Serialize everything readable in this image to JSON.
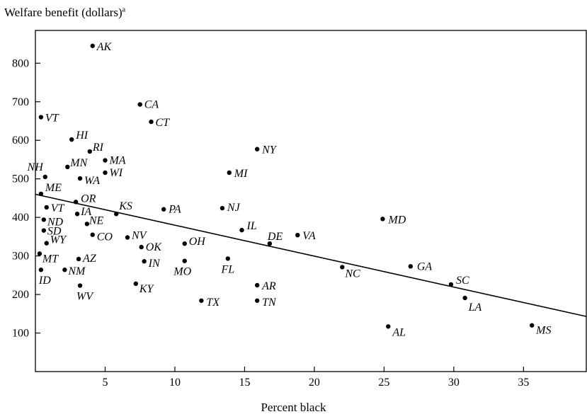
{
  "chart_data": {
    "type": "scatter",
    "ylabel": "Welfare benefit (dollars)",
    "ylabel_superscript": "a",
    "xlabel": "Percent black",
    "xlim": [
      0,
      39.5
    ],
    "ylim": [
      0,
      885
    ],
    "x_ticks": [
      5,
      10,
      15,
      20,
      25,
      30,
      35
    ],
    "y_ticks": [
      100,
      200,
      300,
      400,
      500,
      600,
      700,
      800
    ],
    "grid": false,
    "points": [
      {
        "label": "AK",
        "x": 4.1,
        "y": 845
      },
      {
        "label": "CA",
        "x": 7.5,
        "y": 693
      },
      {
        "label": "VT",
        "x": 0.4,
        "y": 660
      },
      {
        "label": "CT",
        "x": 8.3,
        "y": 648
      },
      {
        "label": "HI",
        "x": 2.6,
        "y": 602
      },
      {
        "label": "NY",
        "x": 15.9,
        "y": 577
      },
      {
        "label": "RI",
        "x": 3.9,
        "y": 571
      },
      {
        "label": "MA",
        "x": 5.0,
        "y": 548
      },
      {
        "label": "MN",
        "x": 2.3,
        "y": 531
      },
      {
        "label": "MI",
        "x": 13.9,
        "y": 516
      },
      {
        "label": "WI",
        "x": 5.0,
        "y": 516
      },
      {
        "label": "NH",
        "x": 0.7,
        "y": 505
      },
      {
        "label": "WA",
        "x": 3.2,
        "y": 501
      },
      {
        "label": "ME",
        "x": 0.4,
        "y": 461
      },
      {
        "label": "OR",
        "x": 2.9,
        "y": 440
      },
      {
        "label": "VT",
        "x": 0.8,
        "y": 426
      },
      {
        "label": "PA",
        "x": 9.2,
        "y": 421
      },
      {
        "label": "NJ",
        "x": 13.4,
        "y": 424
      },
      {
        "label": "KS",
        "x": 5.8,
        "y": 409
      },
      {
        "label": "IA",
        "x": 3.0,
        "y": 409
      },
      {
        "label": "MD",
        "x": 24.9,
        "y": 396
      },
      {
        "label": "ND",
        "x": 0.6,
        "y": 394
      },
      {
        "label": "NE",
        "x": 3.7,
        "y": 383
      },
      {
        "label": "IL",
        "x": 14.8,
        "y": 367
      },
      {
        "label": "SD",
        "x": 0.6,
        "y": 366
      },
      {
        "label": "CO",
        "x": 4.1,
        "y": 355
      },
      {
        "label": "VA",
        "x": 18.8,
        "y": 354
      },
      {
        "label": "NV",
        "x": 6.6,
        "y": 348
      },
      {
        "label": "DE",
        "x": 16.8,
        "y": 332
      },
      {
        "label": "WY",
        "x": 0.8,
        "y": 333
      },
      {
        "label": "OH",
        "x": 10.7,
        "y": 332
      },
      {
        "label": "OK",
        "x": 7.6,
        "y": 323
      },
      {
        "label": "MT",
        "x": 0.3,
        "y": 306
      },
      {
        "label": "FL",
        "x": 13.8,
        "y": 293
      },
      {
        "label": "AZ",
        "x": 3.1,
        "y": 292
      },
      {
        "label": "IN",
        "x": 7.8,
        "y": 286
      },
      {
        "label": "MO",
        "x": 10.7,
        "y": 287
      },
      {
        "label": "GA",
        "x": 26.9,
        "y": 273
      },
      {
        "label": "NC",
        "x": 22.0,
        "y": 271
      },
      {
        "label": "ID",
        "x": 0.4,
        "y": 264
      },
      {
        "label": "NM",
        "x": 2.1,
        "y": 264
      },
      {
        "label": "SC",
        "x": 29.8,
        "y": 226
      },
      {
        "label": "KY",
        "x": 7.2,
        "y": 228
      },
      {
        "label": "AR",
        "x": 15.9,
        "y": 224
      },
      {
        "label": "WV",
        "x": 3.2,
        "y": 223
      },
      {
        "label": "LA",
        "x": 30.8,
        "y": 191
      },
      {
        "label": "TX",
        "x": 11.9,
        "y": 184
      },
      {
        "label": "TN",
        "x": 15.9,
        "y": 184
      },
      {
        "label": "MS",
        "x": 35.6,
        "y": 120
      },
      {
        "label": "AL",
        "x": 25.3,
        "y": 117
      }
    ],
    "trend_line": {
      "x": [
        0,
        39.5
      ],
      "y": [
        460,
        143
      ]
    }
  }
}
